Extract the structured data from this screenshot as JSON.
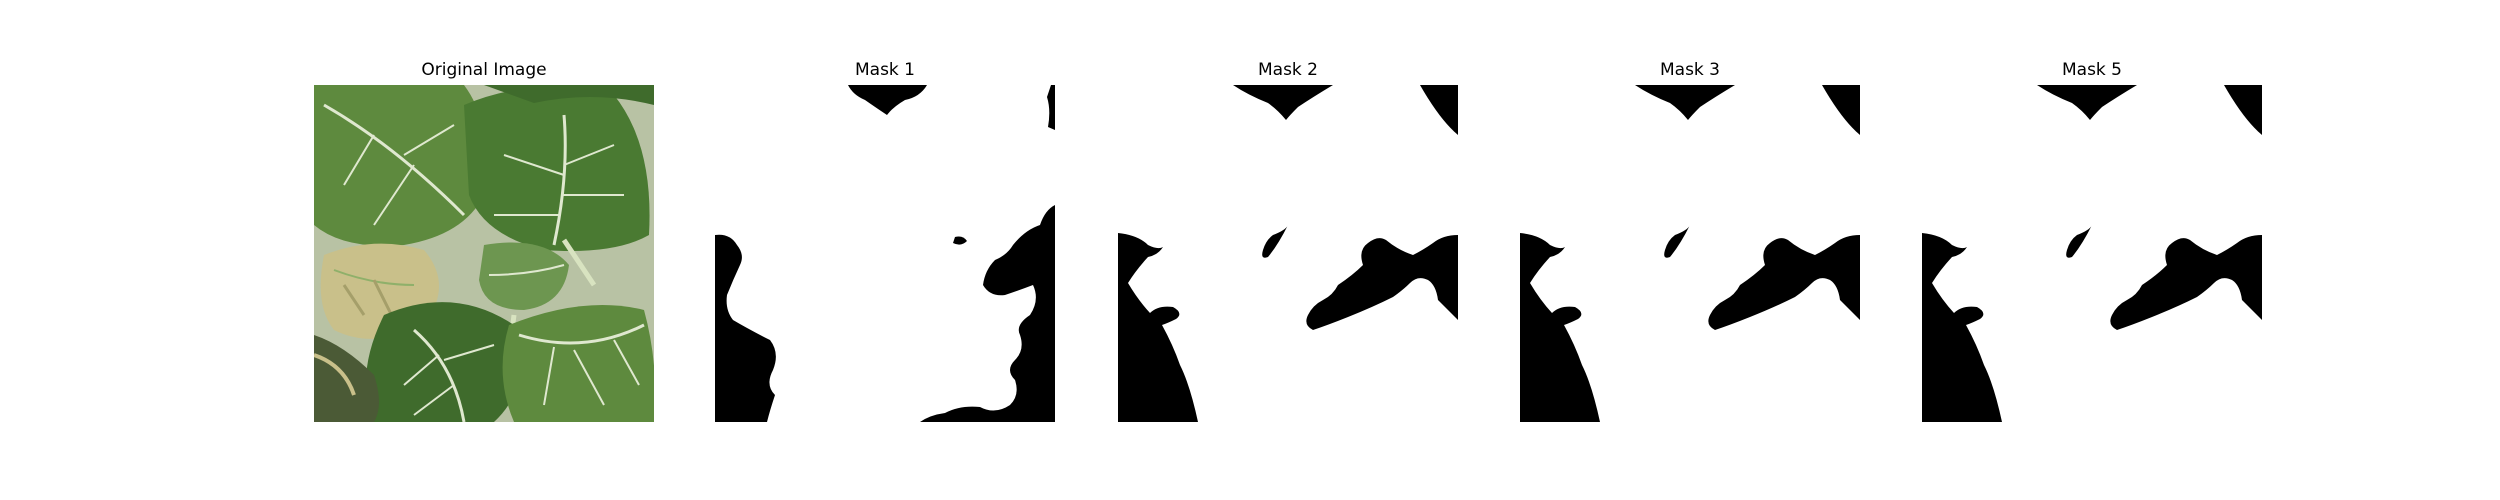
{
  "panels": [
    {
      "title": "Original Image",
      "kind": "photo",
      "subject": "leaf-photo"
    },
    {
      "title": "Mask 1",
      "kind": "mask",
      "variant": "mask-a"
    },
    {
      "title": "Mask 2",
      "kind": "mask",
      "variant": "mask-b"
    },
    {
      "title": "Mask 3",
      "kind": "mask",
      "variant": "mask-b"
    },
    {
      "title": "Mask 5",
      "kind": "mask",
      "variant": "mask-b"
    }
  ],
  "colors": {
    "background": "#ffffff",
    "mask_foreground": "#000000",
    "mask_background": "#ffffff",
    "leaf_dark": "#3f6b2c",
    "leaf_mid": "#5e8a3e",
    "leaf_light": "#8fb06a",
    "leaf_vein": "#dfe8cf",
    "leaf_diseased": "#c9c08a",
    "photo_background": "#b8c2a4"
  }
}
